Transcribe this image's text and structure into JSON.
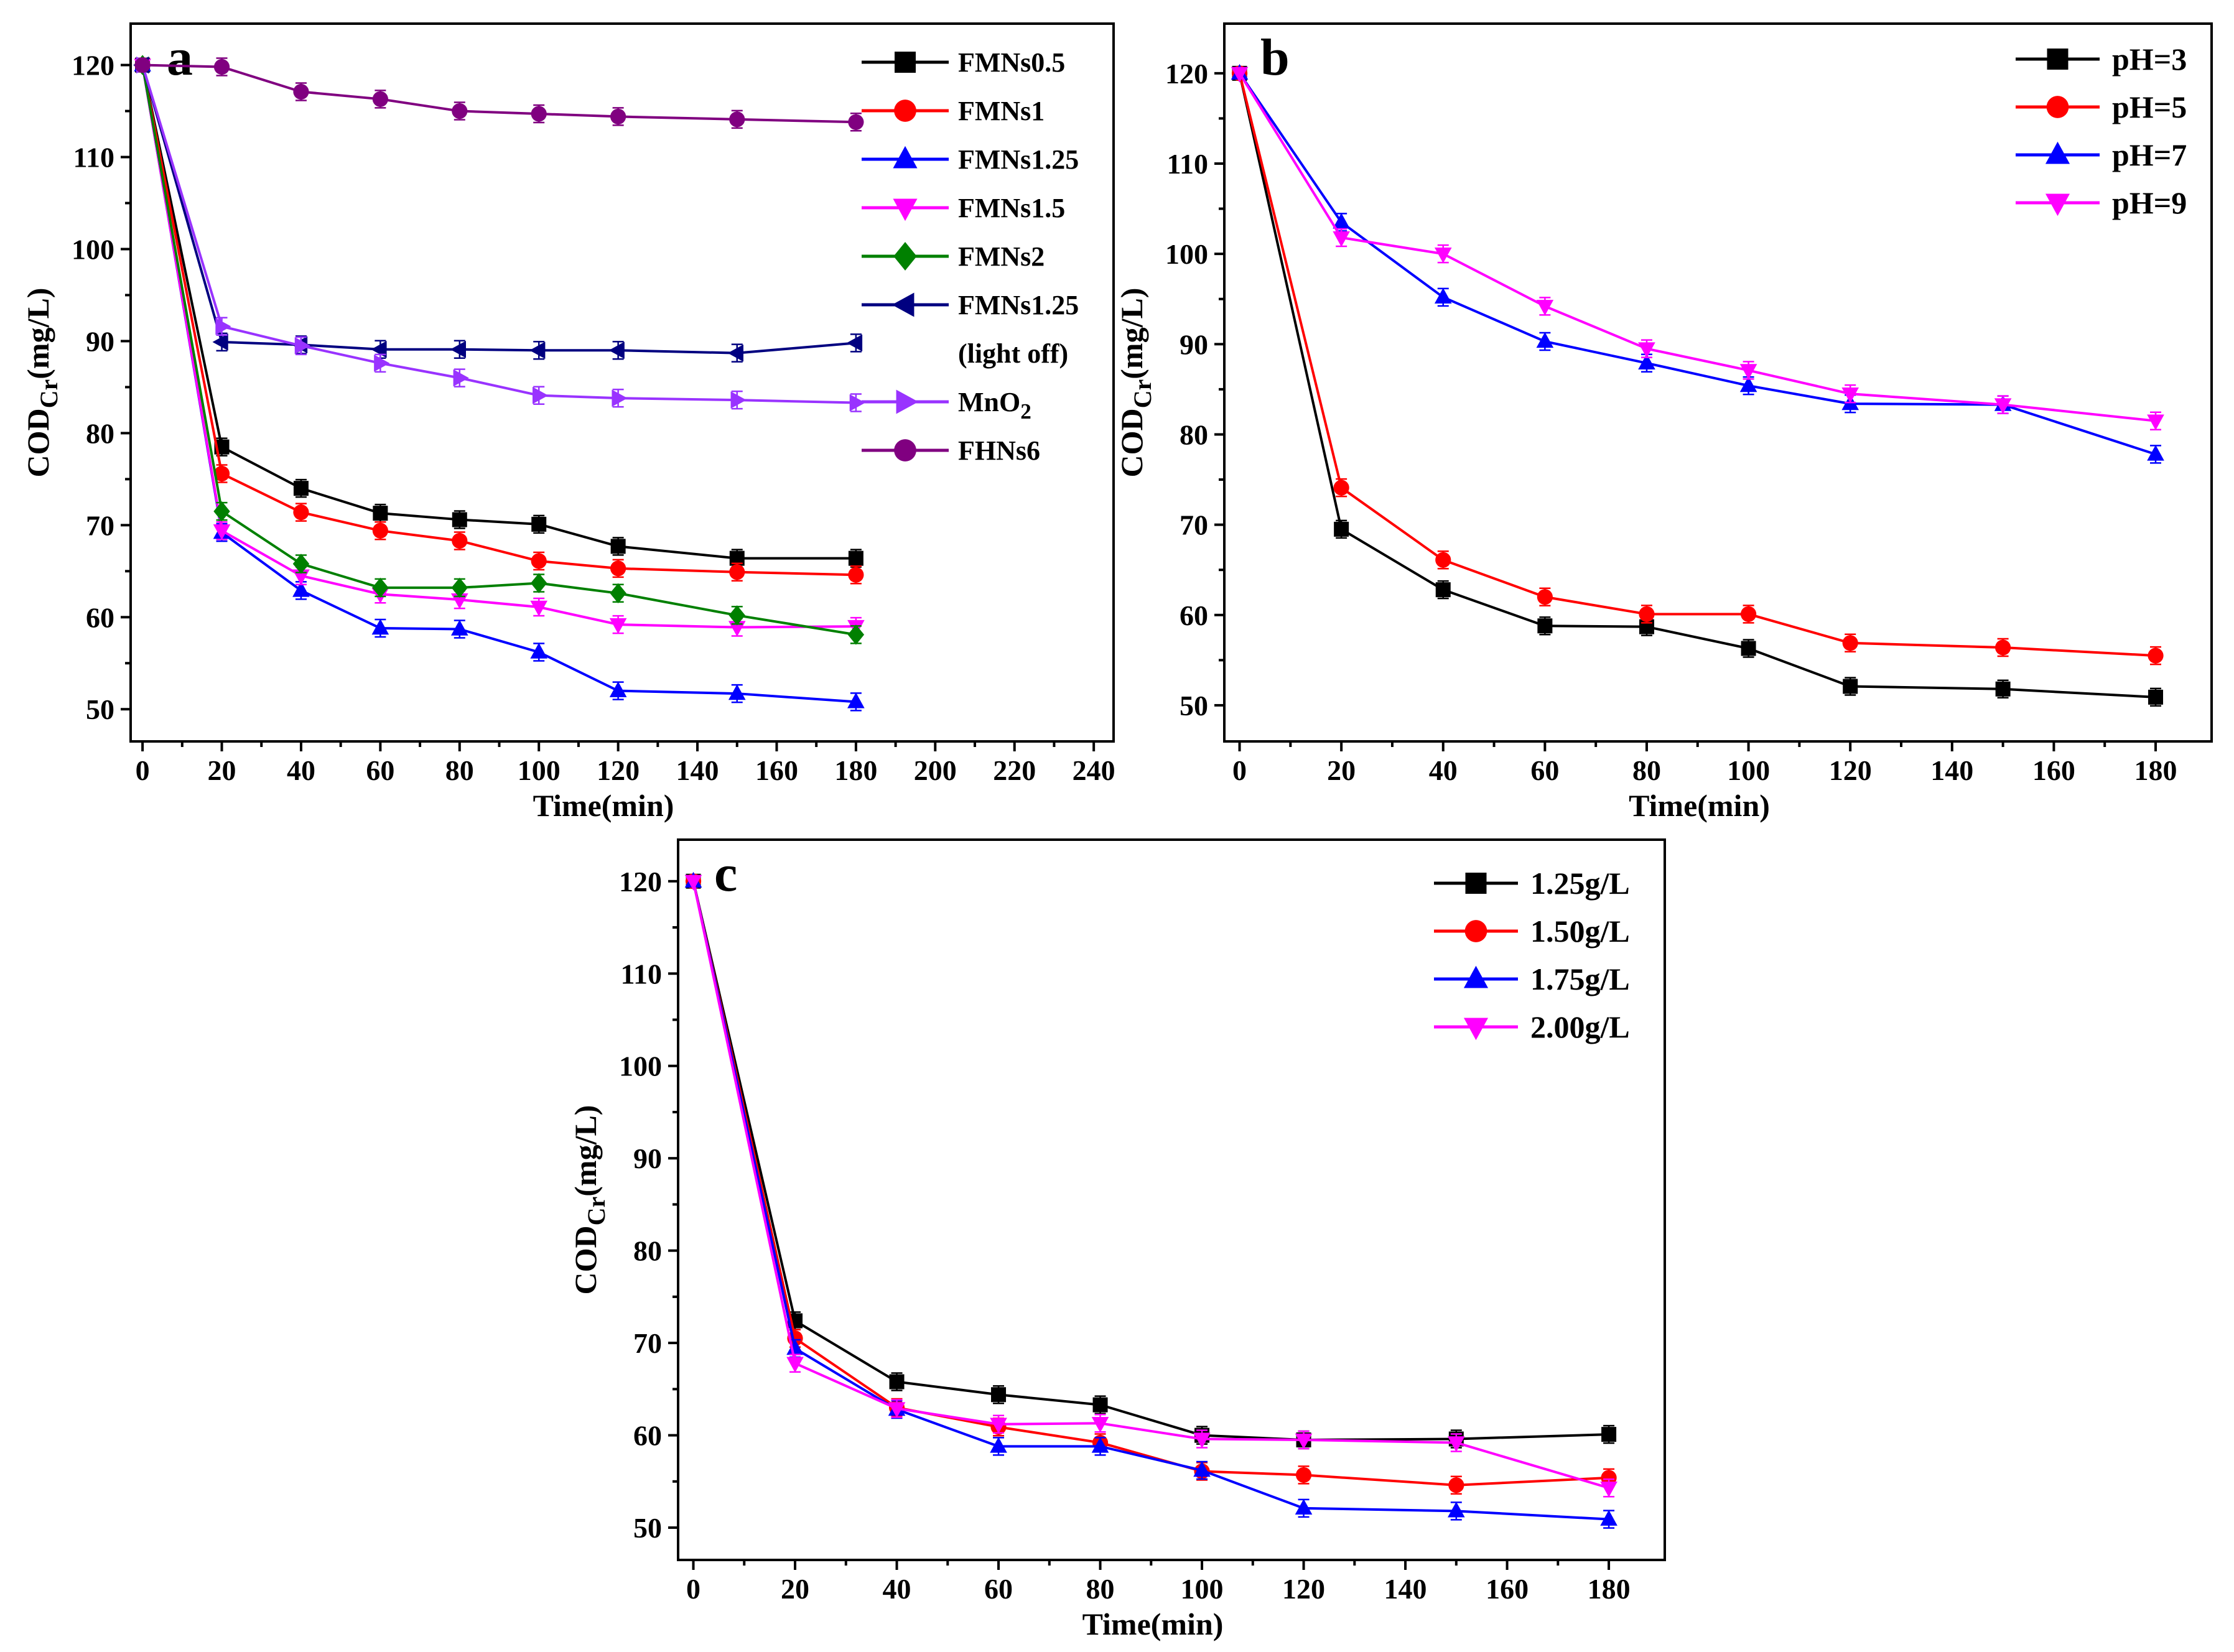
{
  "figure": "COD_Cr removal time courses",
  "chart_data": [
    {
      "id": "a",
      "type": "line",
      "panel_label": "a",
      "xlabel": "Time(min)",
      "ylabel_main": "COD",
      "ylabel_sub": "Cr",
      "ylabel_unit": "(mg/L)",
      "xlim": [
        -3,
        245
      ],
      "ylim": [
        46.5,
        124.5
      ],
      "xticks": [
        0,
        20,
        40,
        60,
        80,
        100,
        120,
        140,
        160,
        180,
        200,
        220,
        240
      ],
      "yticks": [
        50,
        60,
        70,
        80,
        90,
        100,
        110,
        120
      ],
      "x": [
        0,
        20,
        40,
        60,
        80,
        100,
        120,
        150,
        180
      ],
      "legend_position": "top-right",
      "series": [
        {
          "name": "FMNs0.5",
          "color": "#000000",
          "marker": "square",
          "values": [
            120,
            78.5,
            74.0,
            71.3,
            70.6,
            70.1,
            67.7,
            66.4,
            66.4
          ]
        },
        {
          "name": "FMNs1",
          "color": "#ff0000",
          "marker": "circle",
          "values": [
            120,
            75.6,
            71.4,
            69.4,
            68.3,
            66.1,
            65.3,
            64.9,
            64.6
          ]
        },
        {
          "name": "FMNs1.25",
          "color": "#0000ff",
          "marker": "triangle-up",
          "values": [
            120,
            69.2,
            62.9,
            58.8,
            58.7,
            56.2,
            52.0,
            51.7,
            50.8
          ]
        },
        {
          "name": "FMNs1.5",
          "color": "#ff00ff",
          "marker": "triangle-down",
          "values": [
            120,
            69.4,
            64.5,
            62.5,
            61.9,
            61.1,
            59.2,
            58.9,
            59.0
          ]
        },
        {
          "name": "FMNs2",
          "color": "#008000",
          "marker": "diamond",
          "values": [
            120,
            71.5,
            65.8,
            63.2,
            63.2,
            63.7,
            62.6,
            60.2,
            58.1
          ]
        },
        {
          "name": "FMNs1.25",
          "name_line2": "(light off)",
          "color": "#000080",
          "marker": "triangle-left",
          "values": [
            120,
            89.9,
            89.6,
            89.1,
            89.1,
            89.0,
            89.0,
            88.7,
            89.8
          ]
        },
        {
          "name": "MnO",
          "name_sub": "2",
          "color": "#9933ff",
          "marker": "triangle-right",
          "values": [
            120,
            91.6,
            89.5,
            87.6,
            86.0,
            84.1,
            83.8,
            83.6,
            83.3
          ]
        },
        {
          "name": "FHNs6",
          "color": "#800080",
          "marker": "circle",
          "values": [
            120,
            119.8,
            117.1,
            116.3,
            115.0,
            114.7,
            114.4,
            114.1,
            113.8
          ]
        }
      ]
    },
    {
      "id": "b",
      "type": "line",
      "panel_label": "b",
      "xlabel": "Time(min)",
      "ylabel_main": "COD",
      "ylabel_sub": "Cr",
      "ylabel_unit": "(mg/L)",
      "xlim": [
        -3,
        191
      ],
      "ylim": [
        46,
        125.5
      ],
      "xticks": [
        0,
        20,
        40,
        60,
        80,
        100,
        120,
        140,
        160,
        180
      ],
      "yticks": [
        50,
        60,
        70,
        80,
        90,
        100,
        110,
        120
      ],
      "x": [
        0,
        20,
        40,
        60,
        80,
        100,
        120,
        150,
        180
      ],
      "legend_position": "top-right",
      "series": [
        {
          "name": "pH=3",
          "color": "#000000",
          "marker": "square",
          "values": [
            120,
            69.5,
            62.8,
            58.8,
            58.7,
            56.3,
            52.1,
            51.8,
            50.9
          ]
        },
        {
          "name": "pH=5",
          "color": "#ff0000",
          "marker": "circle",
          "values": [
            120,
            74.1,
            66.1,
            62.0,
            60.1,
            60.1,
            56.9,
            56.4,
            55.5
          ]
        },
        {
          "name": "pH=7",
          "color": "#0000ff",
          "marker": "triangle-up",
          "values": [
            120,
            103.5,
            95.2,
            90.3,
            87.9,
            85.4,
            83.4,
            83.3,
            77.8
          ]
        },
        {
          "name": "pH=9",
          "color": "#ff00ff",
          "marker": "triangle-down",
          "values": [
            120,
            101.8,
            100.0,
            94.2,
            89.5,
            87.1,
            84.5,
            83.3,
            81.5
          ]
        }
      ]
    },
    {
      "id": "c",
      "type": "line",
      "panel_label": "c",
      "xlabel": "Time(min)",
      "ylabel_main": "COD",
      "ylabel_sub": "Cr",
      "ylabel_unit": "(mg/L)",
      "xlim": [
        -3,
        191
      ],
      "ylim": [
        46.5,
        124.5
      ],
      "xticks": [
        0,
        20,
        40,
        60,
        80,
        100,
        120,
        140,
        160,
        180
      ],
      "yticks": [
        50,
        60,
        70,
        80,
        90,
        100,
        110,
        120
      ],
      "x": [
        0,
        20,
        40,
        60,
        80,
        100,
        120,
        150,
        180
      ],
      "legend_position": "top-right",
      "series": [
        {
          "name": "1.25g/L",
          "color": "#000000",
          "marker": "square",
          "values": [
            120,
            72.4,
            65.8,
            64.4,
            63.3,
            60.0,
            59.5,
            59.6,
            60.1
          ]
        },
        {
          "name": "1.50g/L",
          "color": "#ff0000",
          "marker": "circle",
          "values": [
            120,
            70.5,
            63.0,
            60.9,
            59.2,
            56.1,
            55.7,
            54.6,
            55.4
          ]
        },
        {
          "name": "1.75g/L",
          "color": "#0000ff",
          "marker": "triangle-up",
          "values": [
            120,
            69.4,
            62.8,
            58.8,
            58.8,
            56.2,
            52.1,
            51.8,
            50.9
          ]
        },
        {
          "name": "2.00g/L",
          "color": "#ff00ff",
          "marker": "triangle-down",
          "values": [
            120,
            67.8,
            62.9,
            61.2,
            61.3,
            59.6,
            59.5,
            59.2,
            54.3
          ]
        }
      ]
    }
  ]
}
